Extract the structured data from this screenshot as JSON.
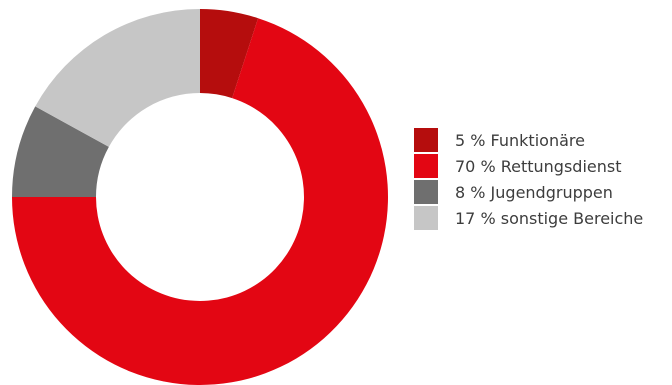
{
  "chart_data": {
    "type": "pie",
    "donut": true,
    "legend_position": "right",
    "slices": [
      {
        "label": "5 % Funktionäre",
        "value": 5,
        "color": "#b50d0d"
      },
      {
        "label": "70 % Rettungsdienst",
        "value": 70,
        "color": "#e30613"
      },
      {
        "label": "8 % Jugendgruppen",
        "value": 8,
        "color": "#6f6f6f"
      },
      {
        "label": "17 % sonstige Bereiche",
        "value": 17,
        "color": "#c6c6c6"
      }
    ]
  }
}
